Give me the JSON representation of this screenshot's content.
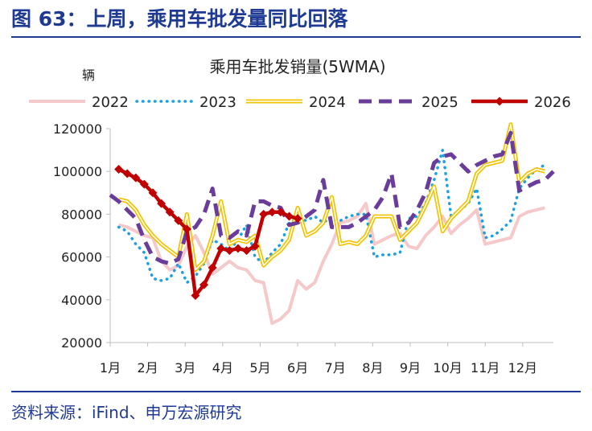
{
  "figure": {
    "title": "图 63：上周，乘用车批发量同比回落",
    "source": "资料来源：iFind、申万宏源研究"
  },
  "colors": {
    "accent": "#1f3a93",
    "2022": "#f5c9c9",
    "2023": "#1ba1e2",
    "2024": "#f2c300",
    "2025": "#6a3d9a",
    "2026": "#c00000"
  },
  "chart_data": {
    "type": "line",
    "title": "乘用车批发销量(5WMA)",
    "ylabel": "辆",
    "xlabel": "",
    "ylim": [
      20000,
      120000
    ],
    "yticks": [
      20000,
      40000,
      60000,
      80000,
      100000,
      120000
    ],
    "ytick_labels": [
      "20000",
      "40000",
      "60000",
      "80000",
      "100000",
      "120000"
    ],
    "xlim": [
      1,
      53
    ],
    "x_axis_unit": "week of year",
    "month_ticks": [
      {
        "label": "1月",
        "week": 1
      },
      {
        "label": "2月",
        "week": 5.4
      },
      {
        "label": "3月",
        "week": 9.8
      },
      {
        "label": "4月",
        "week": 14.2
      },
      {
        "label": "5月",
        "week": 18.6
      },
      {
        "label": "6月",
        "week": 23
      },
      {
        "label": "7月",
        "week": 27.4
      },
      {
        "label": "8月",
        "week": 31.8
      },
      {
        "label": "9月",
        "week": 36.2
      },
      {
        "label": "10月",
        "week": 40.6
      },
      {
        "label": "11月",
        "week": 45
      },
      {
        "label": "12月",
        "week": 49.4
      }
    ],
    "grid": false,
    "legend": "top",
    "series": [
      {
        "name": "2022",
        "x": [
          2,
          3,
          4,
          5,
          6,
          7,
          8,
          9,
          10,
          11,
          12,
          13,
          14,
          15,
          16,
          17,
          18,
          19,
          20,
          21,
          22,
          23,
          24,
          25,
          26,
          27,
          28,
          29,
          30,
          31,
          32,
          33,
          34,
          35,
          36,
          37,
          38,
          39,
          40,
          41,
          42,
          43,
          44,
          45,
          46,
          47,
          48,
          49,
          50,
          51,
          52
        ],
        "values": [
          75000,
          74000,
          72000,
          70000,
          69000,
          58000,
          54000,
          56000,
          65000,
          70000,
          62000,
          52000,
          55000,
          58000,
          55000,
          54000,
          49000,
          48000,
          29000,
          31000,
          35000,
          49000,
          45000,
          48000,
          58000,
          66000,
          76000,
          77000,
          79000,
          85000,
          66000,
          68000,
          70000,
          71000,
          65000,
          64000,
          70000,
          74000,
          79000,
          71000,
          75000,
          78000,
          82000,
          66000,
          67000,
          68000,
          69000,
          79000,
          81000,
          82000,
          83000
        ]
      },
      {
        "name": "2023",
        "x": [
          2,
          3,
          4,
          5,
          6,
          7,
          8,
          9,
          10,
          11,
          12,
          13,
          14,
          15,
          16,
          17,
          18,
          19,
          20,
          21,
          22,
          23,
          24,
          25,
          26,
          27,
          28,
          29,
          30,
          31,
          32,
          33,
          34,
          35,
          36,
          37,
          38,
          39,
          40,
          41,
          42,
          43,
          44,
          45,
          46,
          47,
          48,
          49,
          50,
          51,
          52
        ],
        "values": [
          74000,
          72000,
          66000,
          62000,
          50000,
          49000,
          50000,
          57000,
          48000,
          51000,
          57000,
          68000,
          66000,
          63000,
          68000,
          75000,
          60000,
          57000,
          62000,
          66000,
          76000,
          78000,
          77000,
          79000,
          76000,
          79000,
          77000,
          79000,
          80000,
          80000,
          60000,
          61000,
          61000,
          62000,
          78000,
          79000,
          85000,
          96000,
          110000,
          79000,
          82000,
          85000,
          92000,
          69000,
          70000,
          73000,
          77000,
          92000,
          97000,
          101000,
          103000
        ]
      },
      {
        "name": "2024",
        "x": [
          2,
          3,
          4,
          5,
          6,
          7,
          8,
          9,
          10,
          11,
          12,
          13,
          14,
          15,
          16,
          17,
          18,
          19,
          20,
          21,
          22,
          23,
          24,
          25,
          26,
          27,
          28,
          29,
          30,
          31,
          32,
          33,
          34,
          35,
          36,
          37,
          38,
          39,
          40,
          41,
          42,
          43,
          44,
          45,
          46,
          47,
          48,
          49,
          50,
          51,
          52
        ],
        "values": [
          87000,
          86000,
          82000,
          75000,
          70000,
          66000,
          63000,
          60000,
          80000,
          54000,
          58000,
          70000,
          86000,
          66000,
          68000,
          67000,
          70000,
          56000,
          60000,
          63000,
          68000,
          83000,
          70000,
          72000,
          76000,
          88000,
          66000,
          67000,
          66000,
          70000,
          79000,
          79000,
          79000,
          68000,
          72000,
          76000,
          84000,
          93000,
          72000,
          78000,
          82000,
          86000,
          99000,
          103000,
          104000,
          105000,
          122000,
          95000,
          99000,
          101000,
          100000
        ]
      },
      {
        "name": "2025",
        "x": [
          1,
          2,
          3,
          4,
          5,
          6,
          7,
          8,
          9,
          10,
          11,
          12,
          13,
          14,
          15,
          16,
          17,
          18,
          19,
          20,
          21,
          22,
          23,
          24,
          25,
          26,
          27,
          28,
          29,
          30,
          31,
          32,
          33,
          34,
          35,
          36,
          37,
          38,
          39,
          40,
          41,
          42,
          43,
          44,
          45,
          46,
          47,
          48,
          49,
          50,
          51,
          52,
          53
        ],
        "values": [
          89000,
          86000,
          82000,
          78000,
          68000,
          60000,
          58000,
          57000,
          59000,
          72000,
          74000,
          80000,
          92000,
          70000,
          69000,
          72000,
          70000,
          86000,
          86000,
          84000,
          83000,
          75000,
          76000,
          79000,
          82000,
          96000,
          74000,
          74000,
          74000,
          76000,
          79000,
          82000,
          88000,
          99000,
          74000,
          76000,
          82000,
          90000,
          104000,
          107000,
          108000,
          104000,
          100000,
          103000,
          105000,
          107000,
          108000,
          118000,
          91000,
          93000,
          95000,
          96000,
          100000
        ]
      },
      {
        "name": "2026",
        "x": [
          2,
          3,
          4,
          5,
          6,
          7,
          8,
          9,
          10,
          11,
          12,
          13,
          14,
          15,
          16,
          17,
          18,
          19,
          20,
          21,
          22,
          23
        ],
        "values": [
          101000,
          99000,
          97000,
          94000,
          90000,
          85000,
          81000,
          77000,
          73000,
          42000,
          47000,
          55000,
          64000,
          63000,
          64000,
          63000,
          65000,
          80000,
          81000,
          81000,
          79000,
          78000
        ]
      }
    ]
  }
}
